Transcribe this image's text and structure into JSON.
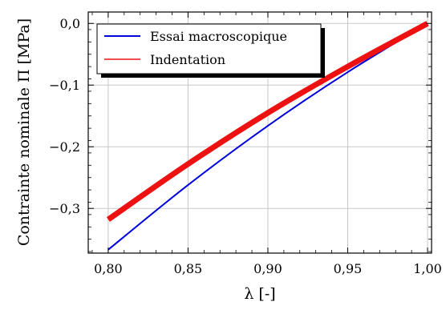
{
  "chart_data": {
    "type": "line",
    "title": "",
    "xlabel": "λ [-]",
    "ylabel": "Contrainte nominale Π [MPa]",
    "xlim": [
      0.7875,
      1.0025
    ],
    "ylim": [
      -0.3725,
      0.0185
    ],
    "xticks": [
      0.8,
      0.85,
      0.9,
      0.95,
      1.0
    ],
    "xtick_labels": [
      "0,80",
      "0,85",
      "0,90",
      "0,95",
      "1,00"
    ],
    "yticks": [
      0.0,
      -0.1,
      -0.2,
      -0.3
    ],
    "ytick_labels": [
      "0,0",
      "−0,1",
      "−0,2",
      "−0,3"
    ],
    "grid": true,
    "legend_position": "top-left",
    "series": [
      {
        "name": "Essai macroscopique",
        "color": "#0000dd",
        "line_width": 2,
        "x": [
          0.8,
          0.85,
          0.9,
          0.95,
          1.0
        ],
        "y": [
          -0.367,
          -0.262,
          -0.166,
          -0.079,
          0.0
        ]
      },
      {
        "name": "Indentation",
        "color": "#ee1111",
        "line_width": 7,
        "x": [
          0.8,
          0.85,
          0.9,
          0.95,
          1.0
        ],
        "y": [
          -0.318,
          -0.228,
          -0.145,
          -0.07,
          0.0
        ]
      }
    ]
  }
}
